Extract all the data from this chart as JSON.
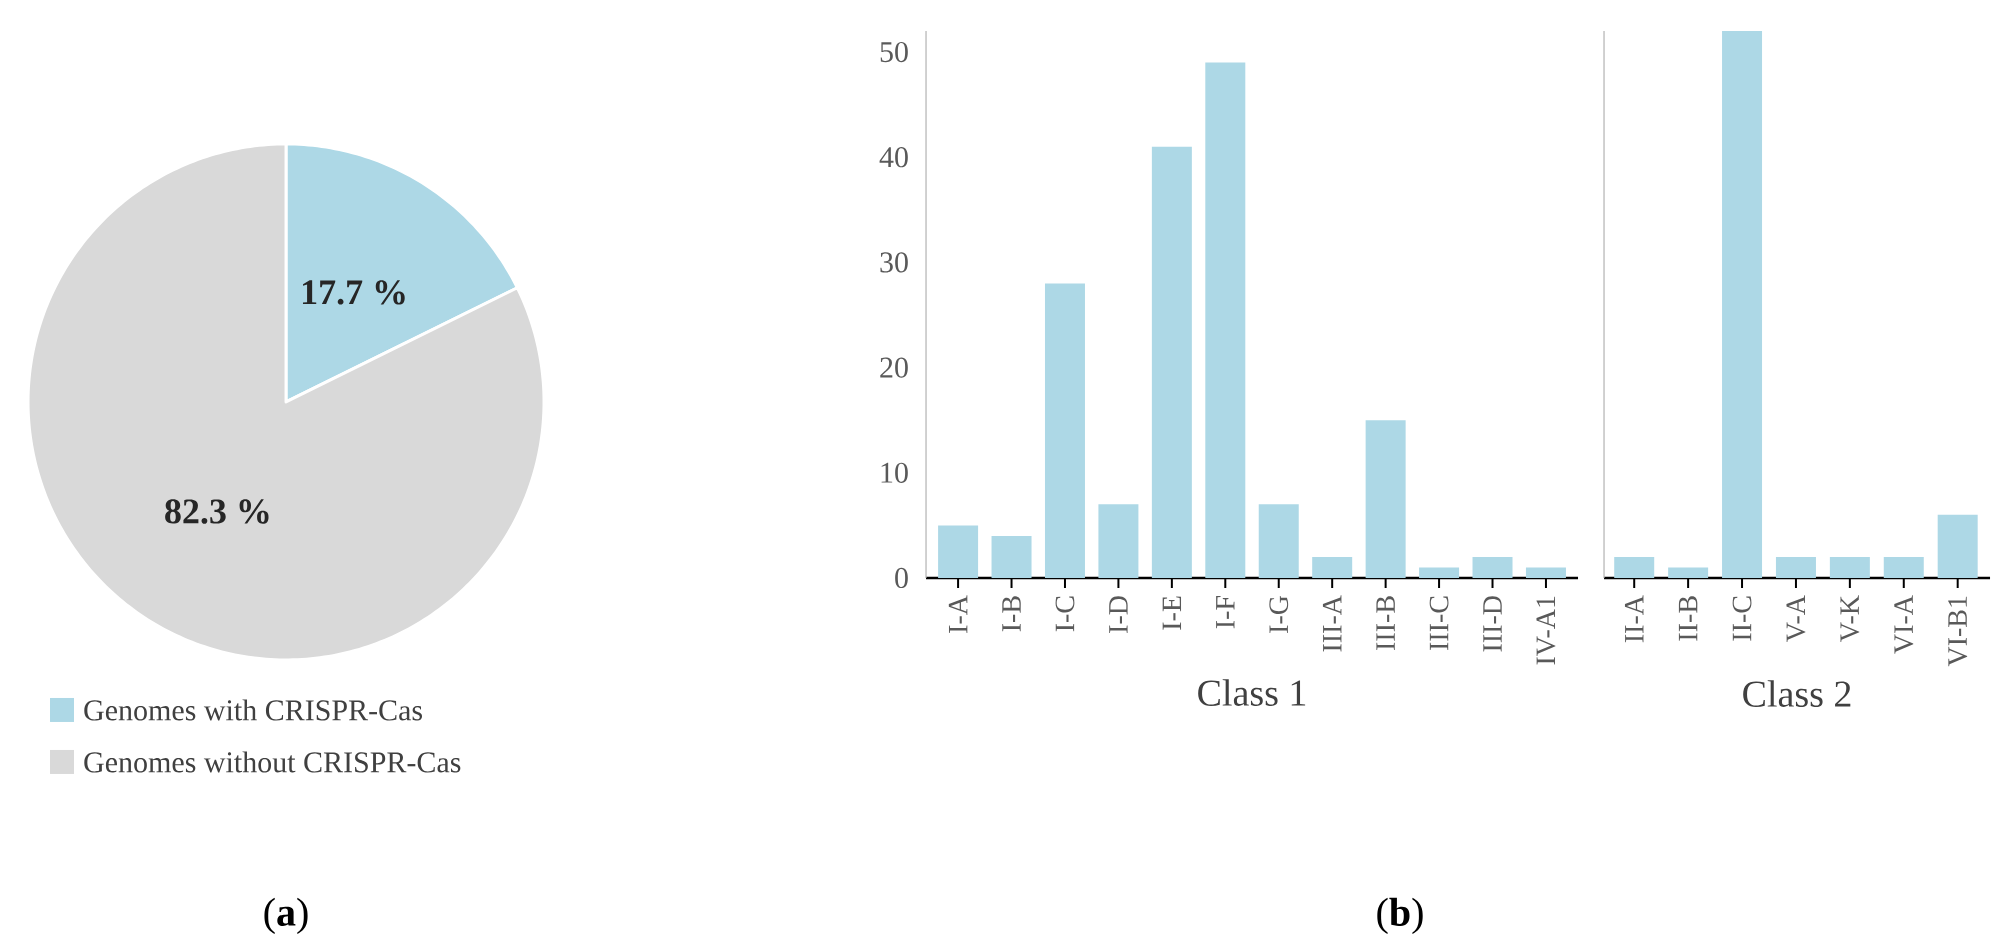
{
  "chart_data": [
    {
      "type": "pie",
      "categories": [
        "Genomes with CRISPR-Cas",
        "Genomes without CRISPR-Cas"
      ],
      "values": [
        17.7,
        82.3
      ],
      "colors": [
        "#add8e6",
        "#d9d9d9"
      ],
      "value_labels": [
        "17.7 %",
        "82.3 %"
      ],
      "legend": "bottom",
      "annotations": [
        "(**a**)"
      ]
    },
    {
      "type": "bar",
      "categories": [
        "I-A",
        "I-B",
        "I-C",
        "I-D",
        "I-E",
        "I-F",
        "I-G",
        "III-A",
        "III-B",
        "III-C",
        "III-D",
        "IV-A1"
      ],
      "values": [
        5,
        4,
        28,
        7,
        41,
        49,
        7,
        2,
        15,
        1,
        2,
        1
      ],
      "color": "#add8e6",
      "xlabel": "Class 1",
      "ylim": [
        0,
        52
      ],
      "yticks": [
        0,
        10,
        20,
        30,
        40,
        50
      ],
      "grid": false,
      "annotations": [
        "(**b**)"
      ]
    },
    {
      "type": "bar",
      "categories": [
        "II-A",
        "II-B",
        "II-C",
        "V-A",
        "V-K",
        "VI-A",
        "VI-B1"
      ],
      "values": [
        2,
        1,
        52,
        2,
        2,
        2,
        6
      ],
      "color": "#add8e6",
      "xlabel": "Class 2",
      "ylim": [
        0,
        52
      ],
      "tick_labels": "x",
      "grid": false
    }
  ]
}
